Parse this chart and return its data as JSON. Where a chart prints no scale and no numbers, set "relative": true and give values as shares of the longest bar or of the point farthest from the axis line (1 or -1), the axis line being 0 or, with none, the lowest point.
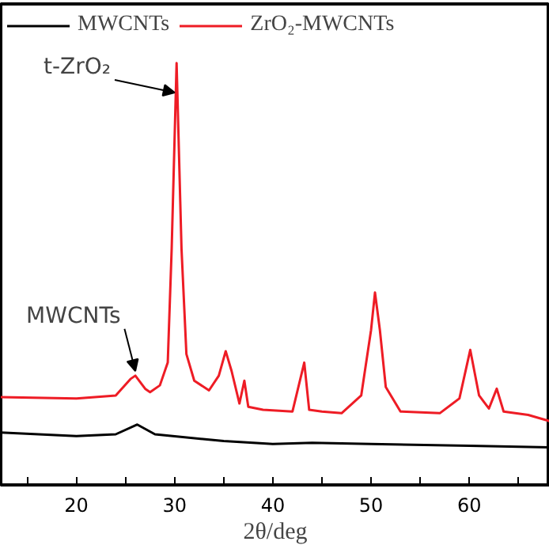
{
  "chart_data": {
    "type": "line",
    "relative": true,
    "xlabel": "2θ/deg",
    "xlim": [
      12.3,
      68.2
    ],
    "xticks": [
      {
        "value": 15,
        "label": null
      },
      20,
      {
        "value": 25,
        "label": null
      },
      30,
      {
        "value": 35,
        "label": null
      },
      40,
      {
        "value": 45,
        "label": null
      },
      50,
      {
        "value": 55,
        "label": null
      },
      60,
      {
        "value": 65,
        "label": null
      }
    ],
    "legend": "top left",
    "grid": false,
    "tick_labels": "x",
    "annotations": [
      {
        "text": "t-ZrO₂",
        "x": 30.0,
        "y": 0.93
      },
      {
        "text": "MWCNTs",
        "x": 26.0,
        "y": 0.27
      }
    ],
    "series": [
      {
        "name": "MWCNTs",
        "color": "#000000",
        "x": [
          12.3,
          20,
          24,
          26.2,
          28,
          35,
          40,
          44,
          50,
          60,
          68.2
        ],
        "values": [
          0.124,
          0.116,
          0.12,
          0.143,
          0.12,
          0.104,
          0.097,
          0.1,
          0.097,
          0.093,
          0.089
        ]
      },
      {
        "name": "ZrO₂-MWCNTs",
        "color": "#ee1c25",
        "x": [
          12.3,
          20,
          24,
          25.5,
          26,
          27,
          27.5,
          28.5,
          29.3,
          29.7,
          30.2,
          30.7,
          31.2,
          32,
          33.5,
          34.5,
          35.2,
          35.8,
          36.6,
          37.1,
          37.5,
          39,
          42,
          43.2,
          43.7,
          45,
          47,
          49,
          50.0,
          50.4,
          50.9,
          51.5,
          53,
          57,
          59,
          60.1,
          61,
          62,
          62.8,
          63.5,
          66,
          68.2
        ],
        "values": [
          0.208,
          0.205,
          0.212,
          0.251,
          0.259,
          0.228,
          0.22,
          0.236,
          0.29,
          0.56,
          1,
          0.56,
          0.31,
          0.247,
          0.224,
          0.259,
          0.317,
          0.27,
          0.193,
          0.247,
          0.185,
          0.178,
          0.174,
          0.29,
          0.178,
          0.174,
          0.17,
          0.212,
          0.367,
          0.456,
          0.367,
          0.232,
          0.174,
          0.17,
          0.205,
          0.32,
          0.212,
          0.181,
          0.228,
          0.174,
          0.166,
          0.151
        ]
      }
    ]
  }
}
